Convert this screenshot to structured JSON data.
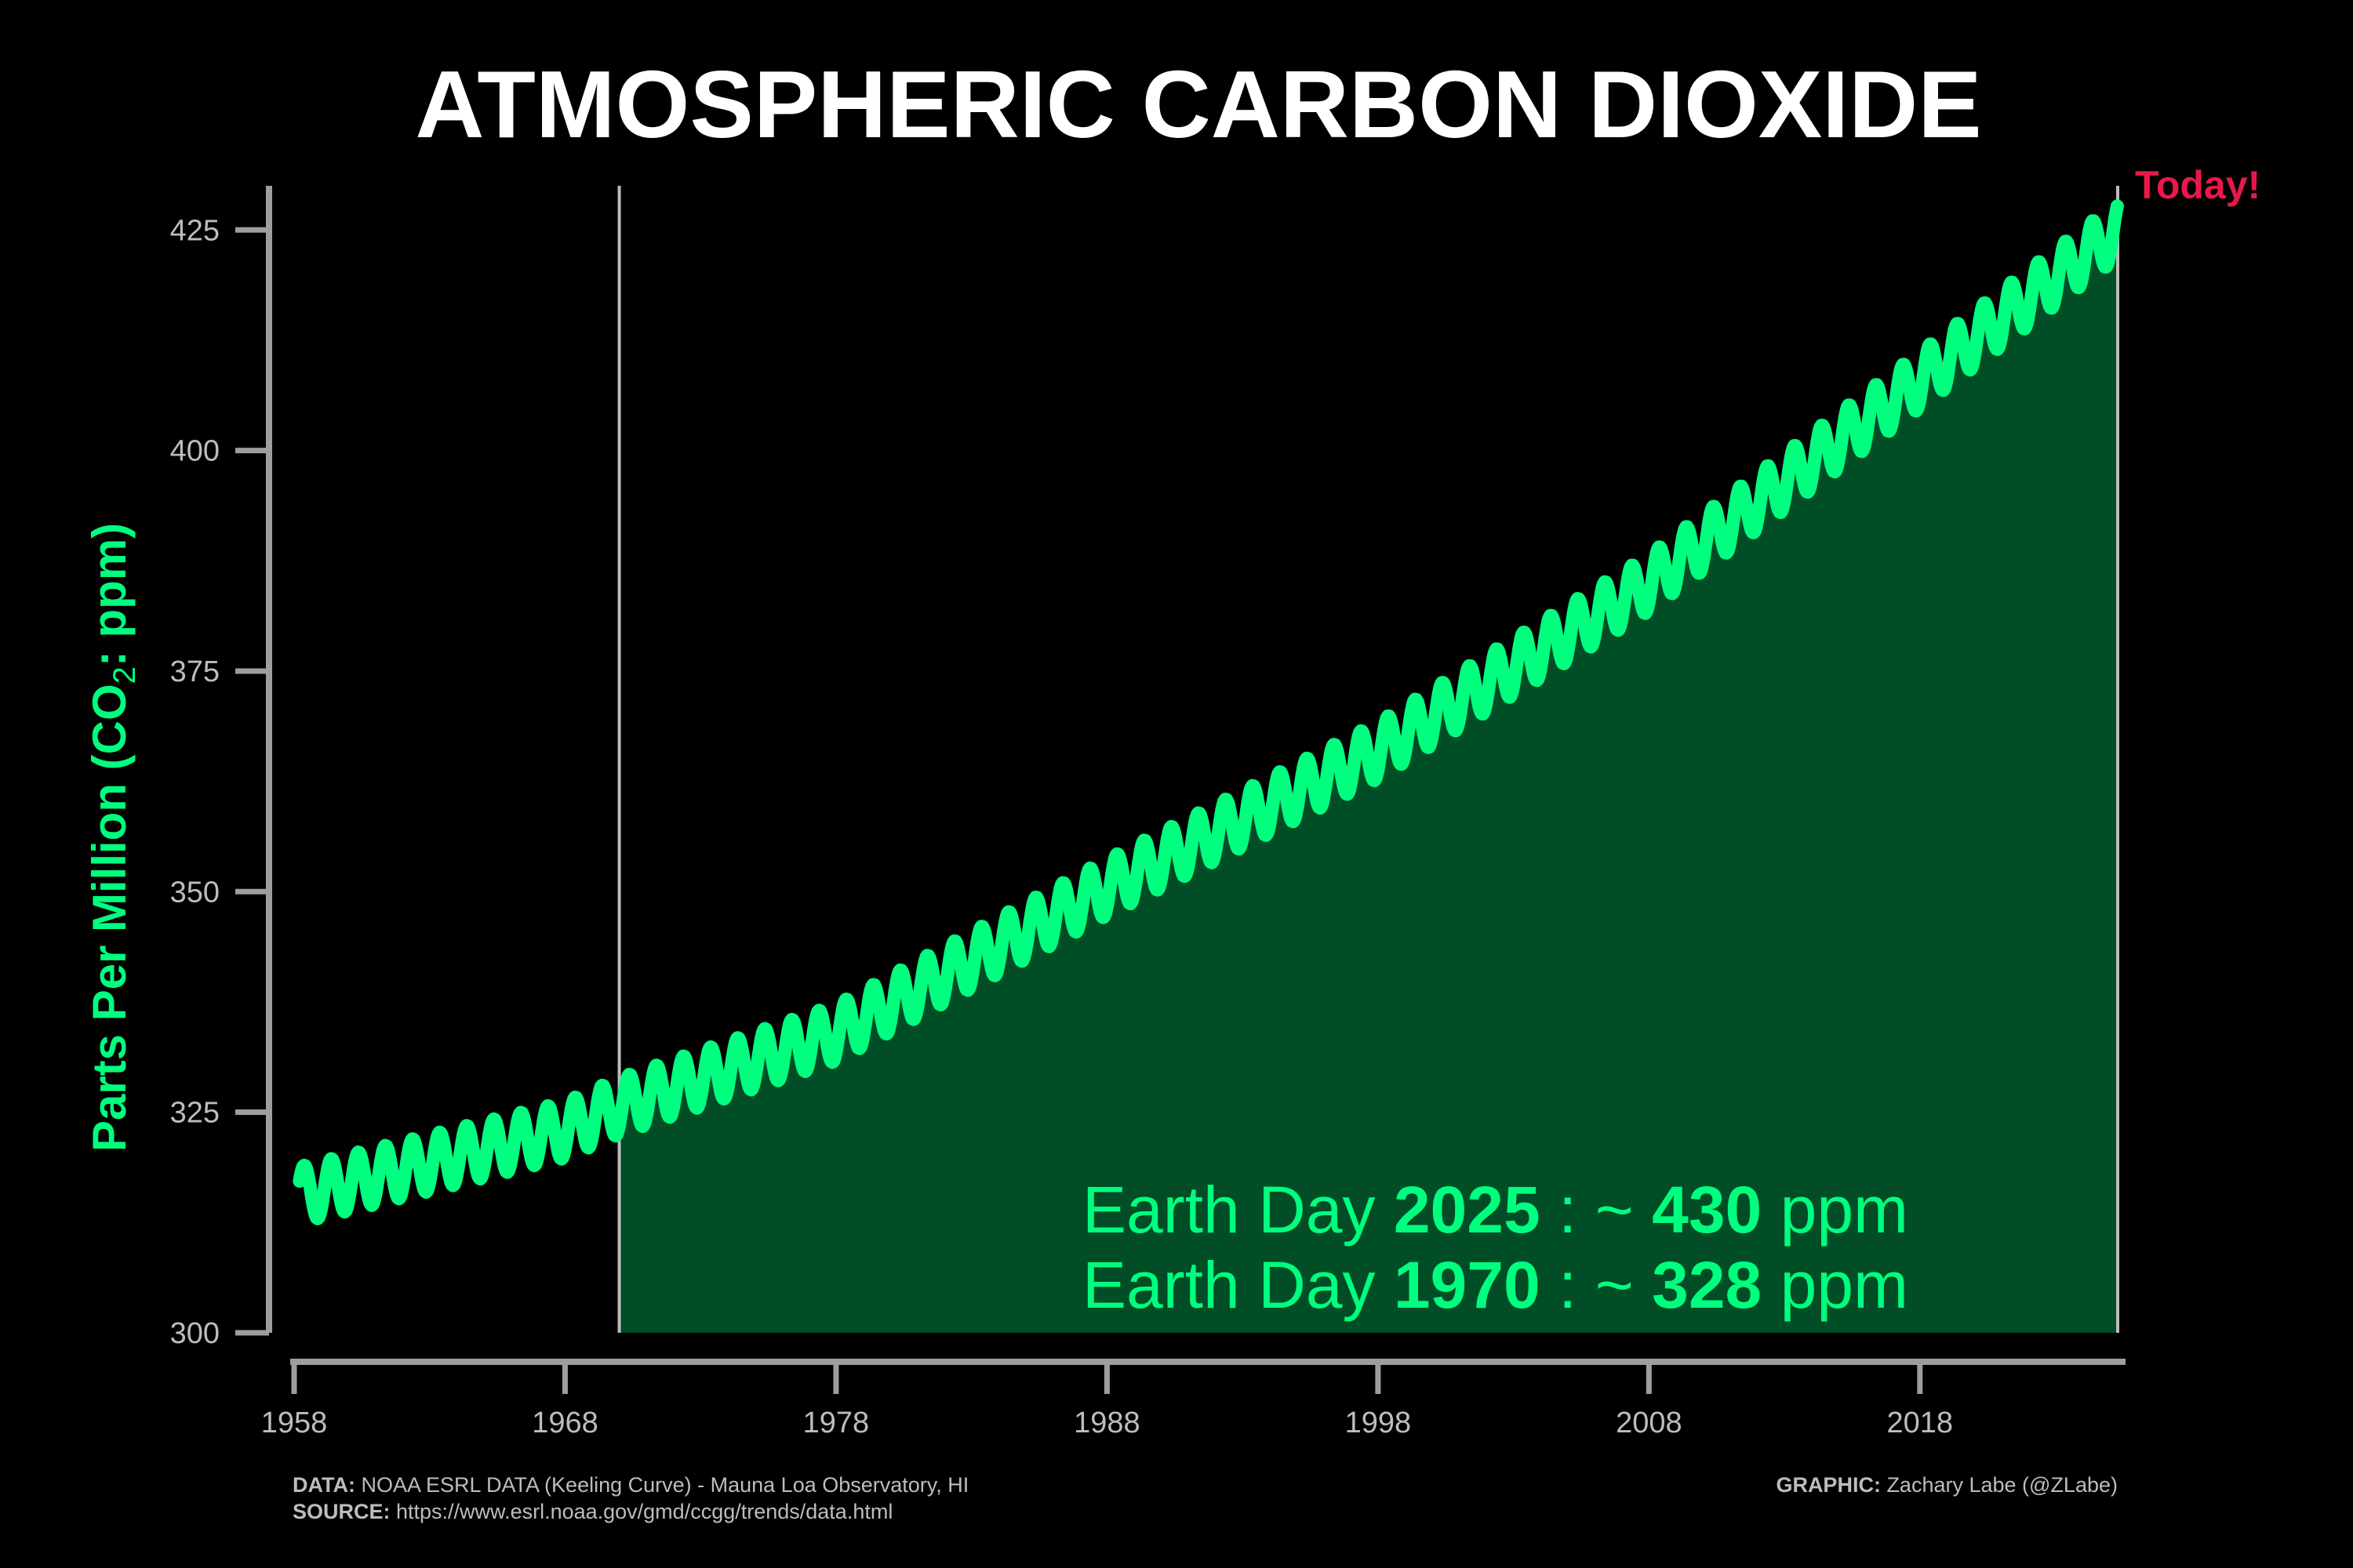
{
  "chart_data": {
    "type": "line",
    "title": "ATMOSPHERIC CARBON DIOXIDE",
    "ylabel_main": "Parts Per Million (CO",
    "ylabel_sub": "2",
    "ylabel_tail": ": ppm)",
    "xlabel": "",
    "xlim": [
      1958,
      2025.3
    ],
    "ylim": [
      300,
      430
    ],
    "xticks": [
      1958,
      1968,
      1978,
      1988,
      1998,
      2008,
      2018
    ],
    "yticks": [
      300,
      325,
      350,
      375,
      400,
      425
    ],
    "grid": false,
    "highlight_start": 1970,
    "highlight_end": 2025.3,
    "trend_anchors": {
      "years": [
        1958,
        1968,
        1970,
        1978,
        1988,
        1998,
        2008,
        2018,
        2025.3
      ],
      "ppm": [
        315.5,
        323.0,
        325.7,
        334.0,
        350.5,
        366.0,
        385.0,
        408.0,
        425.0
      ]
    },
    "seasonal_amplitude": 3.2,
    "color_line": "#00ff7f",
    "color_fill": "#004d26",
    "annotations": {
      "today": "Today!",
      "line1_prefix": "Earth Day ",
      "line1_year": "2025",
      "line1_sep": " : ~ ",
      "line1_value": "430",
      "line1_unit": " ppm",
      "line2_prefix": "Earth Day ",
      "line2_year": "1970",
      "line2_sep": " : ~ ",
      "line2_value": "328",
      "line2_unit": " ppm"
    }
  },
  "footer": {
    "data_label": "DATA:",
    "data_text": " NOAA ESRL DATA (Keeling Curve) - Mauna Loa Observatory, HI",
    "source_label": "SOURCE:",
    "source_text": " https://www.esrl.noaa.gov/gmd/ccgg/trends/data.html",
    "graphic_label": "GRAPHIC:",
    "graphic_text": " Zachary Labe (@ZLabe)"
  },
  "colors": {
    "background": "#000000",
    "axis": "#9e9e9e",
    "today": "#e8194a",
    "title": "#ffffff"
  }
}
